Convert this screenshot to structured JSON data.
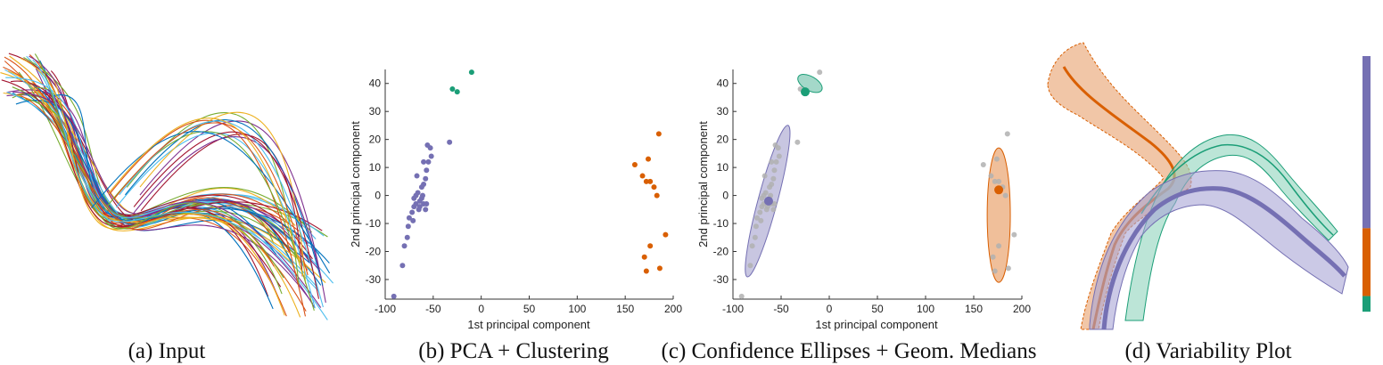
{
  "colors": {
    "purple": "#7570b3",
    "green": "#1b9e77",
    "orange": "#d95f02",
    "grey": "#b0b0b0"
  },
  "captions": {
    "a": "(a) Input",
    "b": "(b) PCA + Clustering",
    "c": "(c) Confidence Ellipses + Geom. Medians",
    "d": "(d) Variability Plot"
  },
  "chart_data": [
    {
      "type": "scatter",
      "panel": "b",
      "xlabel": "1st principal component",
      "ylabel": "2nd principal component",
      "xlim": [
        -100,
        200
      ],
      "ylim": [
        -37,
        45
      ],
      "xticks": [
        -100,
        -50,
        0,
        50,
        100,
        150,
        200
      ],
      "yticks": [
        -30,
        -20,
        -10,
        0,
        10,
        20,
        30,
        40
      ],
      "series": [
        {
          "color": "purple",
          "points": [
            [
              -91,
              -36
            ],
            [
              -82,
              -25
            ],
            [
              -80,
              -18
            ],
            [
              -77,
              -15
            ],
            [
              -76,
              -11
            ],
            [
              -75,
              -8
            ],
            [
              -71,
              -9
            ],
            [
              -72,
              -6
            ],
            [
              -70,
              -4
            ],
            [
              -68,
              -3
            ],
            [
              -65,
              -5
            ],
            [
              -64,
              -4
            ],
            [
              -70,
              -1
            ],
            [
              -68,
              0
            ],
            [
              -66,
              1
            ],
            [
              -64,
              -2
            ],
            [
              -62,
              -1
            ],
            [
              -60,
              -3
            ],
            [
              -58,
              -5
            ],
            [
              -57,
              -3
            ],
            [
              -61,
              0
            ],
            [
              -60,
              4
            ],
            [
              -62,
              3
            ],
            [
              -58,
              6
            ],
            [
              -57,
              9
            ],
            [
              -55,
              12
            ],
            [
              -52,
              14
            ],
            [
              -56,
              18
            ],
            [
              -53,
              17
            ],
            [
              -60,
              12
            ],
            [
              -67,
              7
            ],
            [
              -33,
              19
            ]
          ]
        },
        {
          "color": "green",
          "points": [
            [
              -30,
              38
            ],
            [
              -25,
              37
            ],
            [
              -10,
              44
            ]
          ]
        },
        {
          "color": "orange",
          "points": [
            [
              160,
              11
            ],
            [
              168,
              7
            ],
            [
              172,
              5
            ],
            [
              176,
              5
            ],
            [
              174,
              13
            ],
            [
              180,
              3
            ],
            [
              183,
              0
            ],
            [
              185,
              22
            ],
            [
              192,
              -14
            ],
            [
              176,
              -18
            ],
            [
              170,
              -22
            ],
            [
              172,
              -27
            ],
            [
              186,
              -26
            ]
          ]
        }
      ]
    },
    {
      "type": "scatter",
      "panel": "c",
      "xlabel": "1st principal component",
      "ylabel": "2nd principal component",
      "xlim": [
        -100,
        200
      ],
      "ylim": [
        -37,
        45
      ],
      "xticks": [
        -100,
        -50,
        0,
        50,
        100,
        150,
        200
      ],
      "yticks": [
        -30,
        -20,
        -10,
        0,
        10,
        20,
        30,
        40
      ],
      "ellipses": [
        {
          "color": "purple",
          "center": [
            -64,
            -2
          ],
          "rx": 10,
          "ry": 28,
          "angle_deg": 15
        },
        {
          "color": "green",
          "center": [
            -20,
            40
          ],
          "rx": 14,
          "ry": 2.5,
          "angle_deg": 30
        },
        {
          "color": "orange",
          "center": [
            176,
            -7
          ],
          "rx": 12,
          "ry": 24,
          "angle_deg": 0
        }
      ],
      "medians": [
        {
          "color": "purple",
          "point": [
            -63,
            -2
          ]
        },
        {
          "color": "green",
          "point": [
            -25,
            37
          ]
        },
        {
          "color": "orange",
          "point": [
            176,
            2
          ]
        }
      ]
    }
  ],
  "variability_plot": {
    "colorbar": [
      {
        "color": "purple",
        "fraction": 0.66
      },
      {
        "color": "orange",
        "fraction": 0.26
      },
      {
        "color": "green",
        "fraction": 0.06
      }
    ]
  }
}
